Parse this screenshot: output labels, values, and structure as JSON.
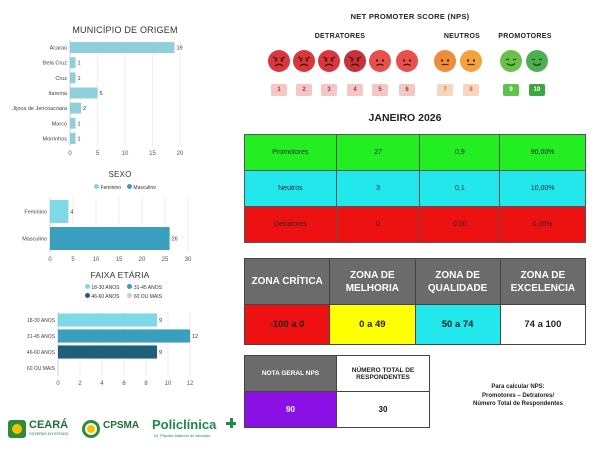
{
  "chart_data": [
    {
      "type": "bar",
      "orientation": "horizontal",
      "title": "MUNICÍPIO DE ORIGEM",
      "categories": [
        "Acaraú",
        "Bela Cruz",
        "Cruz",
        "Itarema",
        "Jijoca de Jericoacoara",
        "Marco",
        "Morrinhos"
      ],
      "values": [
        19,
        1,
        1,
        5,
        2,
        1,
        1
      ],
      "xlim": [
        0,
        20
      ],
      "xticks": [
        0,
        5,
        10,
        15,
        20
      ],
      "grid": true,
      "color": "#8ecfdb"
    },
    {
      "type": "bar",
      "orientation": "horizontal",
      "title": "SEXO",
      "categories": [
        "Feminino",
        "Masculino"
      ],
      "series": [
        {
          "name": "Feminino",
          "values": [
            4,
            null
          ],
          "color": "#7fd8e8"
        },
        {
          "name": "Masculino",
          "values": [
            null,
            26
          ],
          "color": "#3a9fbf"
        }
      ],
      "xlim": [
        0,
        30
      ],
      "xticks": [
        0,
        5,
        10,
        15,
        20,
        25,
        30
      ],
      "legend": "top",
      "grid": true
    },
    {
      "type": "bar",
      "orientation": "horizontal",
      "title": "FAIXA ETÁRIA",
      "categories": [
        "18-30 ANOS",
        "31-45 ANOS",
        "46-60 ANOS",
        "60 OU MAIS"
      ],
      "series": [
        {
          "name": "18-30 ANOS",
          "values": [
            9,
            null,
            null,
            null
          ],
          "color": "#7fd8e8"
        },
        {
          "name": "31-45 ANOS",
          "values": [
            null,
            12,
            null,
            null
          ],
          "color": "#3a9fbf"
        },
        {
          "name": "46-60 ANOS",
          "values": [
            null,
            null,
            9,
            null
          ],
          "color": "#1f5f7a"
        },
        {
          "name": "60 OU MAIS",
          "values": [
            null,
            null,
            null,
            0
          ],
          "color": "#c9cdd1"
        }
      ],
      "xlim": [
        0,
        12
      ],
      "xticks": [
        0,
        2,
        4,
        6,
        8,
        10,
        12
      ],
      "legend": "top",
      "grid": true
    }
  ],
  "nps": {
    "title": "NET PROMOTER SCORE (NPS)",
    "groups": {
      "detratores": "DETRATORES",
      "neutros": "NEUTROS",
      "promotores": "PROMOTORES"
    },
    "faces": [
      {
        "icon": "very-angry-face-icon",
        "color": "#d9363e"
      },
      {
        "icon": "very-angry-face-icon",
        "color": "#d9363e"
      },
      {
        "icon": "very-angry-face-icon",
        "color": "#d9363e"
      },
      {
        "icon": "angry-face-icon",
        "color": "#c8303a"
      },
      {
        "icon": "sad-face-icon",
        "color": "#e8504c"
      },
      {
        "icon": "sad-face-icon",
        "color": "#e8504c"
      },
      {
        "icon": "neutral-face-icon",
        "color": "#f08c3a"
      },
      {
        "icon": "neutral-face-icon",
        "color": "#f4a23a"
      },
      {
        "icon": "smile-face-icon",
        "color": "#6cc04a"
      },
      {
        "icon": "smile-face-icon",
        "color": "#4caf50"
      }
    ],
    "scores": [
      {
        "label": "1",
        "bg": "#f4c7c7",
        "fg": "#b42a2a"
      },
      {
        "label": "2",
        "bg": "#f4c7c7",
        "fg": "#b42a2a"
      },
      {
        "label": "3",
        "bg": "#f4c7c7",
        "fg": "#b42a2a"
      },
      {
        "label": "4",
        "bg": "#f4c7c7",
        "fg": "#b42a2a"
      },
      {
        "label": "5",
        "bg": "#f4c7c7",
        "fg": "#b42a2a"
      },
      {
        "label": "6",
        "bg": "#f4c7c7",
        "fg": "#b42a2a"
      },
      {
        "label": "7",
        "bg": "#f8d5bf",
        "fg": "#d06a24"
      },
      {
        "label": "8",
        "bg": "#f8d5bf",
        "fg": "#d06a24"
      },
      {
        "label": "9",
        "bg": "#5fc24a",
        "fg": "#ffffff"
      },
      {
        "label": "10",
        "bg": "#3ea63e",
        "fg": "#ffffff"
      }
    ]
  },
  "month": {
    "title": "JANEIRO 2026",
    "rows": [
      {
        "label": "Promotores",
        "count": "27",
        "fraction": "0,9",
        "percent": "90,00%",
        "bg": "#22ee22"
      },
      {
        "label": "Neutros",
        "count": "3",
        "fraction": "0,1",
        "percent": "10,00%",
        "bg": "#22e8ee"
      },
      {
        "label": "Detratores",
        "count": "0",
        "fraction": "0,00",
        "percent": "0,00%",
        "bg": "#ee1111"
      }
    ]
  },
  "zones": {
    "headers": [
      "ZONA CRÍTICA",
      "ZONA DE MELHORIA",
      "ZONA DE QUALIDADE",
      "ZONA DE EXCELENCIA"
    ],
    "ranges": [
      "-100 a 0",
      "0 a 49",
      "50 a 74",
      "74 a 100"
    ],
    "colors": [
      "#ee1111",
      "#ffff00",
      "#22e8ee",
      "#ffffff"
    ],
    "header_bg": "#6b6b6b"
  },
  "nota": {
    "header": "NOTA GERAL NPS",
    "total_header": "NÚMERO TOTAL DE RESPONDENTES",
    "value": "90",
    "total": "30",
    "value_bg": "#8a10e6"
  },
  "formula": {
    "line1": "Para calcular NPS:",
    "line2": "Promotores – Detratores/",
    "line3": "Número Total de Respondentes"
  },
  "logos": {
    "ceara": "CEARÁ",
    "ceara_sub": "GOVERNO DO ESTADO",
    "cpsma": "CPSMA",
    "policlinica": "Policlínica",
    "policlinica_sub": "Dr. Plácido Marinho de Andrade"
  }
}
